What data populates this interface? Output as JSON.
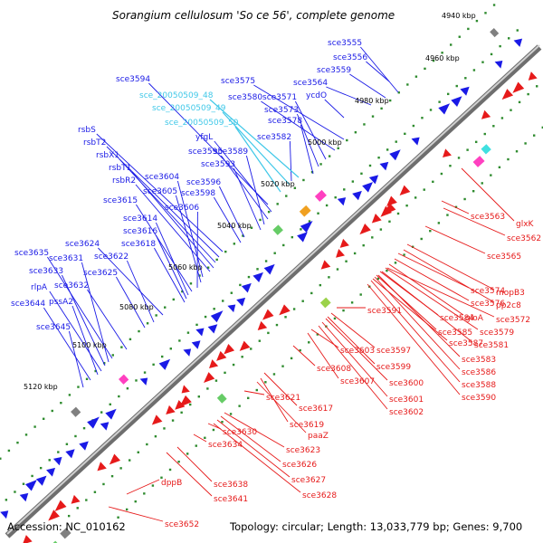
{
  "title": "Sorangium cellulosum 'So ce 56', complete genome",
  "footer": {
    "accession": "Accession: NC_010162",
    "summary": "Topology: circular; Length: 13,033,779 bp; Genes: 9,700"
  },
  "colors": {
    "forward": "#1a1ae6",
    "reverse": "#e61a1a",
    "highlight": "#40c8e8",
    "backbone": "#8a8a8a",
    "ticks": "#2e8b2e"
  },
  "kbp_ticks": [
    "4940 kbp",
    "4960 kbp",
    "4980 kbp",
    "5000 kbp",
    "5020 kbp",
    "5040 kbp",
    "5060 kbp",
    "5080 kbp",
    "5100 kbp",
    "5120 kbp"
  ],
  "forward_labels": [
    "sce3555",
    "sce3556",
    "sce3559",
    "sce3564",
    "ycdO",
    "sce3575",
    "sce3580",
    "sce3571",
    "sce3573",
    "sce3578",
    "sce3582",
    "sce3594",
    "sce_20050509_48",
    "sce_20050509_49",
    "sce_20050509_50",
    "yfgL",
    "sce3595",
    "sce3589",
    "sce3593",
    "rsbS",
    "rsbT2",
    "rsbX1",
    "rsbT1",
    "rsbR2",
    "sce3604",
    "sce3605",
    "sce3596",
    "sce3598",
    "sce3606",
    "sce3615",
    "sce3614",
    "sce3616",
    "sce3618",
    "sce3624",
    "sce3622",
    "sce3635",
    "sce3631",
    "sce3633",
    "sce3625",
    "rlpA",
    "sce3632",
    "pssA2",
    "sce3644",
    "sce3645"
  ],
  "reverse_labels": [
    "glxK",
    "sce3563",
    "sce3562",
    "sce3565",
    "sce3574",
    "mopB3",
    "sce3576",
    "pp2c8",
    "sce3591",
    "sce3584",
    "gloA",
    "sce3572",
    "sce3585",
    "sce3579",
    "sce3587",
    "sce3581",
    "sce3603",
    "sce3597",
    "sce3583",
    "sce3599",
    "sce3586",
    "sce3608",
    "sce3607",
    "sce3600",
    "sce3588",
    "sce3601",
    "sce3590",
    "sce3602",
    "sce3621",
    "sce3617",
    "sce3619",
    "paaZ",
    "sce3630",
    "sce3634",
    "sce3623",
    "sce3626",
    "sce3627",
    "dppB",
    "sce3638",
    "sce3628",
    "sce3641",
    "sce3652"
  ]
}
